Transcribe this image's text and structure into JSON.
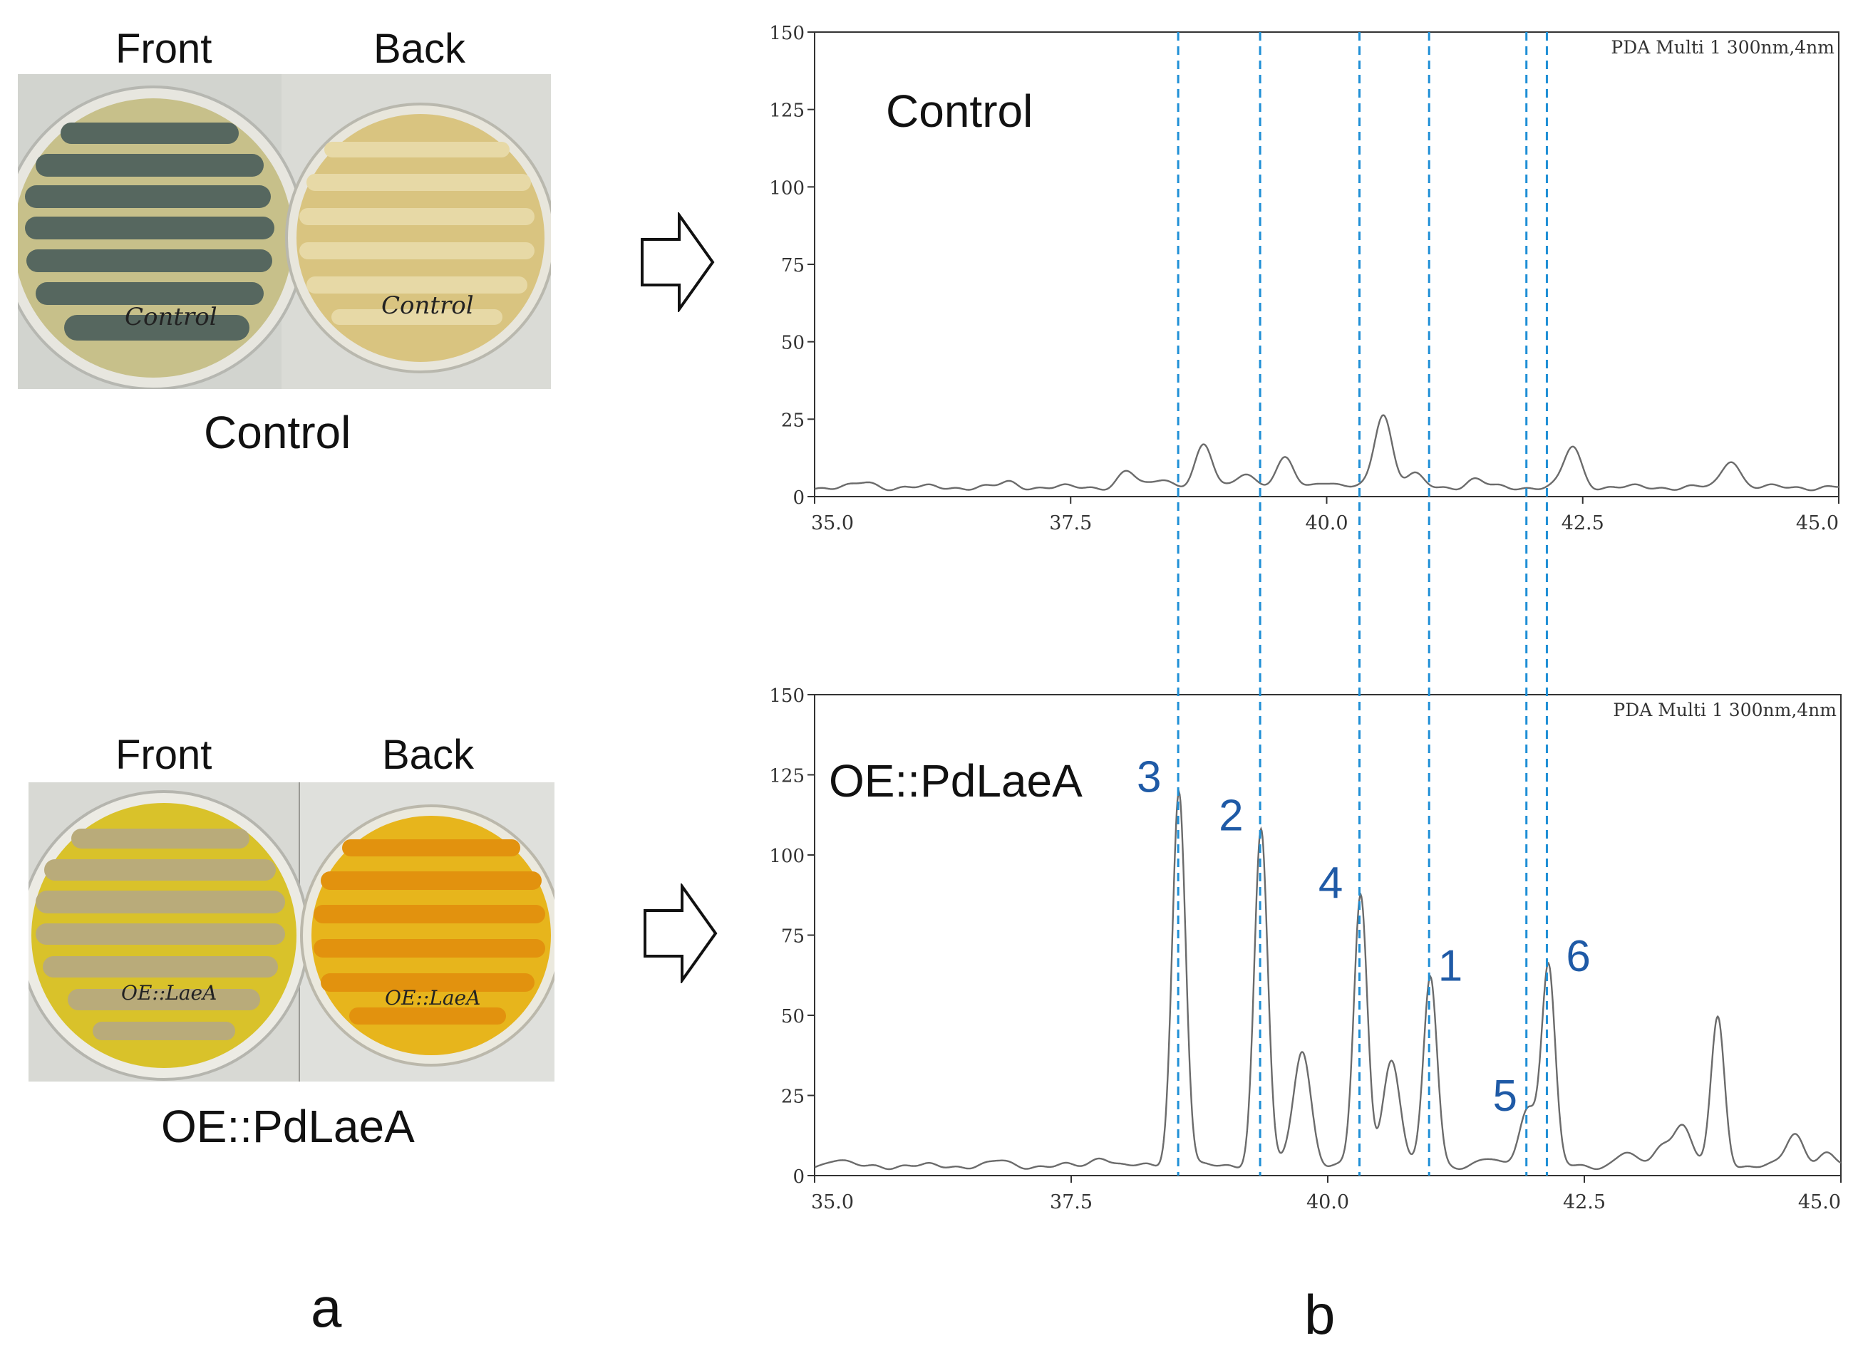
{
  "panel_a": {
    "label": "a",
    "control": {
      "front_label": "Front",
      "back_label": "Back",
      "caption": "Control",
      "plate_writing": "Control",
      "colors": {
        "front_mycelium": "#56675f",
        "front_agar": "#c7c08a",
        "back_agar": "#d9c480",
        "back_streak": "#e7d9a6"
      }
    },
    "mutant": {
      "front_label": "Front",
      "back_label": "Back",
      "caption": "OE::PdLaeA",
      "plate_writing": "OE::LaeA",
      "colors": {
        "front_agar": "#d9c22a",
        "front_streak": "#b9ab7a",
        "back_agar": "#e7b51c",
        "back_streak": "#e2920e"
      }
    }
  },
  "panel_b": {
    "label": "b",
    "detector_label": "PDA Multi 1 300nm,4nm",
    "peak_markers": [
      38.55,
      39.35,
      40.32,
      41.0,
      41.95,
      42.15
    ],
    "marker_color": "#1f8fd6",
    "peak_label_color": "#1f5aa6"
  },
  "chart_data": [
    {
      "type": "line",
      "title": "Control",
      "xlabel": "",
      "ylabel": "",
      "xlim": [
        35.0,
        45.0
      ],
      "ylim": [
        0,
        150
      ],
      "x_ticks": [
        "35.0",
        "37.5",
        "40.0",
        "42.5",
        "45.0"
      ],
      "y_ticks": [
        "0",
        "25",
        "50",
        "75",
        "100",
        "125",
        "150"
      ],
      "baseline": 3,
      "peaks": [
        {
          "x": 35.5,
          "y": 1.5
        },
        {
          "x": 36.9,
          "y": 1.5
        },
        {
          "x": 38.05,
          "y": 5
        },
        {
          "x": 38.4,
          "y": 3
        },
        {
          "x": 38.8,
          "y": 13
        },
        {
          "x": 39.2,
          "y": 5
        },
        {
          "x": 39.6,
          "y": 9
        },
        {
          "x": 39.95,
          "y": 2
        },
        {
          "x": 40.55,
          "y": 24
        },
        {
          "x": 40.85,
          "y": 4
        },
        {
          "x": 41.45,
          "y": 2.5
        },
        {
          "x": 42.4,
          "y": 13
        },
        {
          "x": 43.95,
          "y": 9
        }
      ],
      "peak_labels": []
    },
    {
      "type": "line",
      "title": "OE::PdLaeA",
      "xlabel": "",
      "ylabel": "",
      "xlim": [
        35.0,
        45.0
      ],
      "ylim": [
        0,
        150
      ],
      "x_ticks": [
        "35.0",
        "37.5",
        "40.0",
        "42.5",
        "45.0"
      ],
      "y_ticks": [
        "0",
        "25",
        "50",
        "75",
        "100",
        "125",
        "150"
      ],
      "baseline": 3,
      "peaks": [
        {
          "x": 35.2,
          "y": 2
        },
        {
          "x": 36.8,
          "y": 1.5
        },
        {
          "x": 37.8,
          "y": 3
        },
        {
          "x": 38.55,
          "y": 117
        },
        {
          "x": 39.35,
          "y": 105
        },
        {
          "x": 39.75,
          "y": 36
        },
        {
          "x": 40.32,
          "y": 84
        },
        {
          "x": 40.62,
          "y": 33
        },
        {
          "x": 41.0,
          "y": 59
        },
        {
          "x": 41.55,
          "y": 2
        },
        {
          "x": 41.95,
          "y": 18
        },
        {
          "x": 42.15,
          "y": 62
        },
        {
          "x": 42.9,
          "y": 4
        },
        {
          "x": 43.25,
          "y": 6
        },
        {
          "x": 43.45,
          "y": 13
        },
        {
          "x": 43.8,
          "y": 46
        },
        {
          "x": 44.55,
          "y": 10
        },
        {
          "x": 44.85,
          "y": 4
        }
      ],
      "peak_labels": [
        {
          "text": "3",
          "x": 38.55
        },
        {
          "text": "2",
          "x": 39.35
        },
        {
          "text": "4",
          "x": 40.32
        },
        {
          "text": "1",
          "x": 41.0
        },
        {
          "text": "5",
          "x": 41.95
        },
        {
          "text": "6",
          "x": 42.15
        }
      ]
    }
  ]
}
